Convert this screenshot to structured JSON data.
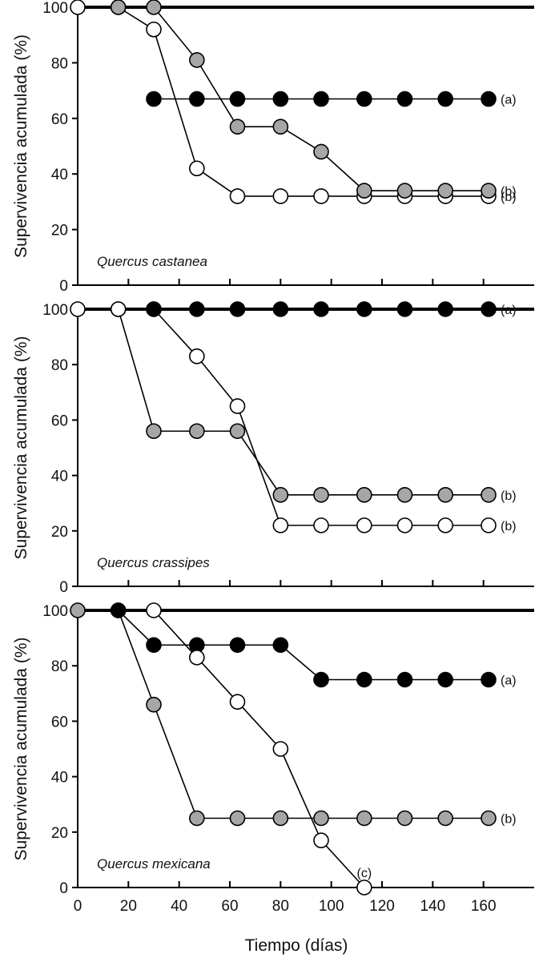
{
  "chart_data": {
    "type": "line",
    "xlabel": "Tiempo (días)",
    "xlim": [
      0,
      180
    ],
    "xticks": [
      0,
      20,
      40,
      60,
      80,
      100,
      120,
      140,
      160
    ],
    "x": [
      0,
      16,
      30,
      47,
      63,
      80,
      96,
      113,
      129,
      145,
      162
    ],
    "colors": {
      "black": "#000000",
      "gray": "#a6a6a6",
      "white": "#ffffff"
    },
    "panels": [
      {
        "label": "Quercus castanea",
        "ylabel": "Supervivencia acumulada (%)",
        "ylim": [
          0,
          100
        ],
        "yticks": [
          0,
          20,
          40,
          60,
          80,
          100
        ],
        "series": [
          {
            "fill": "white",
            "values": [
              100,
              100,
              92,
              42,
              32,
              32,
              32,
              32,
              32,
              32,
              32
            ],
            "letter": "(b)"
          },
          {
            "fill": "gray",
            "values": [
              null,
              100,
              100,
              81,
              57,
              57,
              48,
              34,
              34,
              34,
              34
            ],
            "letter": "(b)"
          },
          {
            "fill": "black",
            "values": [
              null,
              null,
              67,
              67,
              67,
              67,
              67,
              67,
              67,
              67,
              67
            ],
            "letter": "(a)"
          }
        ]
      },
      {
        "label": "Quercus crassipes",
        "ylabel": "Supervivencia acumulada (%)",
        "ylim": [
          0,
          100
        ],
        "yticks": [
          0,
          20,
          40,
          60,
          80,
          100
        ],
        "series": [
          {
            "fill": "gray",
            "values": [
              null,
              100,
              56,
              56,
              56,
              33,
              33,
              33,
              33,
              33,
              33
            ],
            "letter": "(b)"
          },
          {
            "fill": "white",
            "values": [
              100,
              100,
              100,
              83,
              65,
              22,
              22,
              22,
              22,
              22,
              22
            ],
            "letter": "(b)"
          },
          {
            "fill": "black",
            "values": [
              null,
              null,
              100,
              100,
              100,
              100,
              100,
              100,
              100,
              100,
              100
            ],
            "letter": "(a)"
          }
        ]
      },
      {
        "label": "Quercus mexicana",
        "ylabel": "Supervivencia acumulada (%)",
        "ylim": [
          0,
          100
        ],
        "yticks": [
          0,
          20,
          40,
          60,
          80,
          100
        ],
        "series": [
          {
            "fill": "gray",
            "values": [
              100,
              100,
              66,
              25,
              25,
              25,
              25,
              25,
              25,
              25,
              25
            ],
            "letter": "(b)"
          },
          {
            "fill": "black",
            "values": [
              null,
              100,
              87.5,
              87.5,
              87.5,
              87.5,
              75,
              75,
              75,
              75,
              75
            ],
            "letter": "(a)"
          },
          {
            "fill": "white",
            "values": [
              null,
              null,
              100,
              83,
              67,
              50,
              17,
              0,
              null,
              null,
              null
            ],
            "letter": "(c)"
          }
        ]
      }
    ]
  }
}
